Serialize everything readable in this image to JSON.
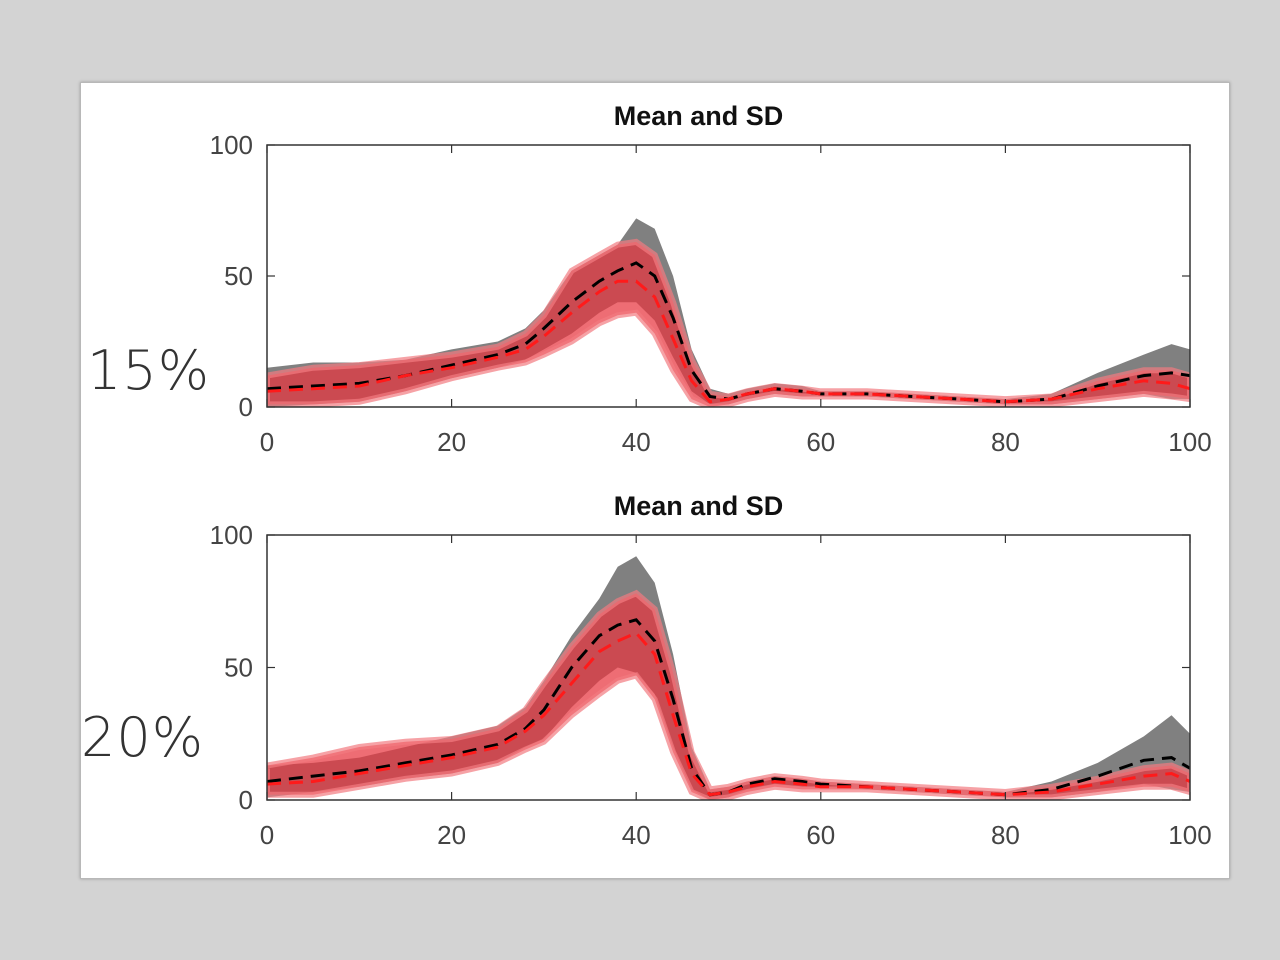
{
  "colors": {
    "background": "#d3d3d3",
    "card": "#ffffff",
    "sd_gray": "#808080",
    "sd_red": "#e8343f",
    "sd_red_light": "#f27a80",
    "mean_black": "#000000",
    "mean_red": "#ff1a1a"
  },
  "side_labels": [
    "15%",
    "20%"
  ],
  "chart_data": [
    {
      "type": "area",
      "title": "Mean and SD",
      "xlabel": "",
      "ylabel": "",
      "xlim": [
        0,
        100
      ],
      "ylim": [
        0,
        100
      ],
      "xticks": [
        0,
        20,
        40,
        60,
        80,
        100
      ],
      "yticks": [
        0,
        50,
        100
      ],
      "grid": false,
      "x": [
        0,
        5,
        10,
        15,
        20,
        25,
        28,
        30,
        33,
        36,
        38,
        40,
        42,
        44,
        46,
        48,
        50,
        52,
        55,
        58,
        60,
        65,
        70,
        75,
        80,
        85,
        90,
        95,
        98,
        100
      ],
      "series": [
        {
          "mean": [
            7,
            8,
            9,
            12,
            16,
            20,
            24,
            30,
            40,
            48,
            52,
            55,
            50,
            34,
            14,
            4,
            3,
            5,
            7,
            6,
            5,
            5,
            4,
            3,
            2,
            3,
            8,
            12,
            13,
            12
          ],
          "upper": [
            15,
            17,
            17,
            18,
            22,
            25,
            30,
            37,
            52,
            58,
            62,
            72,
            68,
            50,
            22,
            7,
            5,
            7,
            9,
            8,
            6,
            6,
            5,
            4,
            3,
            5,
            13,
            20,
            24,
            22
          ],
          "lower": [
            0,
            1,
            2,
            6,
            11,
            15,
            18,
            22,
            28,
            36,
            40,
            40,
            33,
            19,
            6,
            1,
            1,
            3,
            5,
            4,
            4,
            4,
            3,
            2,
            1,
            1,
            3,
            5,
            3,
            3
          ]
        },
        {
          "mean": [
            6,
            7,
            8,
            12,
            15,
            19,
            22,
            27,
            36,
            44,
            48,
            48,
            42,
            26,
            10,
            2,
            3,
            5,
            7,
            6,
            5,
            5,
            4,
            3,
            2,
            3,
            7,
            10,
            9,
            7
          ],
          "upper": [
            12,
            15,
            16,
            18,
            20,
            23,
            28,
            35,
            52,
            58,
            62,
            63,
            58,
            40,
            18,
            5,
            4,
            6,
            8,
            7,
            6,
            6,
            5,
            4,
            3,
            4,
            10,
            14,
            14,
            12
          ],
          "lower": [
            1,
            1,
            2,
            6,
            11,
            15,
            17,
            20,
            25,
            32,
            35,
            36,
            28,
            14,
            3,
            0,
            1,
            3,
            5,
            4,
            4,
            4,
            3,
            2,
            1,
            1,
            3,
            5,
            4,
            3
          ]
        }
      ]
    },
    {
      "type": "area",
      "title": "Mean and SD",
      "xlabel": "",
      "ylabel": "",
      "xlim": [
        0,
        100
      ],
      "ylim": [
        0,
        100
      ],
      "xticks": [
        0,
        20,
        40,
        60,
        80,
        100
      ],
      "yticks": [
        0,
        50,
        100
      ],
      "grid": false,
      "x": [
        0,
        5,
        10,
        15,
        20,
        25,
        28,
        30,
        33,
        36,
        38,
        40,
        42,
        44,
        46,
        48,
        50,
        52,
        55,
        58,
        60,
        65,
        70,
        75,
        80,
        85,
        90,
        95,
        98,
        100
      ],
      "series": [
        {
          "mean": [
            7,
            9,
            11,
            14,
            17,
            21,
            27,
            34,
            50,
            62,
            66,
            68,
            60,
            38,
            12,
            2,
            3,
            6,
            8,
            7,
            6,
            5,
            4,
            3,
            2,
            4,
            9,
            15,
            16,
            12
          ],
          "upper": [
            13,
            14,
            16,
            20,
            24,
            28,
            35,
            45,
            62,
            76,
            88,
            92,
            82,
            55,
            20,
            4,
            5,
            7,
            9,
            8,
            7,
            6,
            5,
            4,
            3,
            7,
            14,
            24,
            32,
            25
          ],
          "lower": [
            1,
            3,
            5,
            8,
            10,
            14,
            20,
            23,
            35,
            45,
            50,
            48,
            40,
            20,
            4,
            0,
            1,
            4,
            6,
            5,
            5,
            4,
            3,
            2,
            1,
            1,
            3,
            6,
            4,
            3
          ]
        },
        {
          "mean": [
            6,
            7,
            10,
            13,
            16,
            20,
            26,
            32,
            44,
            56,
            60,
            63,
            55,
            32,
            10,
            2,
            3,
            5,
            7,
            6,
            5,
            5,
            4,
            3,
            2,
            3,
            6,
            9,
            10,
            7
          ],
          "upper": [
            13,
            16,
            20,
            22,
            23,
            27,
            34,
            44,
            58,
            70,
            75,
            78,
            72,
            48,
            18,
            4,
            5,
            7,
            9,
            8,
            7,
            6,
            5,
            4,
            3,
            5,
            8,
            12,
            13,
            10
          ],
          "lower": [
            2,
            2,
            5,
            8,
            10,
            14,
            19,
            22,
            32,
            40,
            45,
            47,
            38,
            18,
            3,
            0,
            1,
            3,
            5,
            4,
            4,
            4,
            3,
            2,
            1,
            1,
            3,
            5,
            5,
            3
          ]
        }
      ]
    }
  ]
}
